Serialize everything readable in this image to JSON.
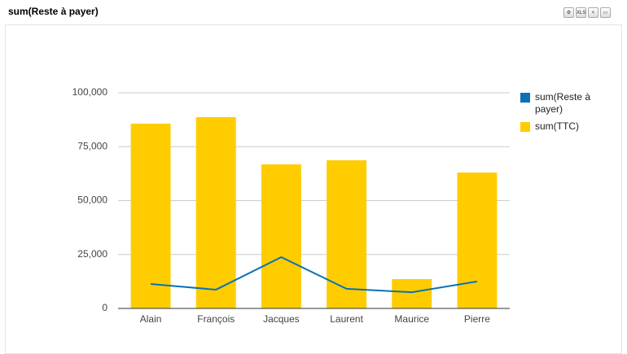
{
  "header": {
    "toolbar_label": "XLS"
  },
  "chart_data": {
    "type": "combo",
    "title": "sum(Reste à payer)",
    "categories": [
      "Alain",
      "François",
      "Jacques",
      "Laurent",
      "Maurice",
      "Pierre"
    ],
    "series": [
      {
        "name": "sum(Reste à payer)",
        "type": "line",
        "color": "#0b72b5",
        "values": [
          11300,
          8700,
          23800,
          9100,
          7500,
          12500
        ]
      },
      {
        "name": "sum(TTC)",
        "type": "bar",
        "color": "#ffcc00",
        "values": [
          85700,
          88700,
          66800,
          68700,
          13600,
          63000
        ]
      }
    ],
    "ylim": [
      0,
      100000
    ],
    "yticks": [
      0,
      {
        "value": 25000,
        "label": "25,000"
      },
      {
        "value": 50000,
        "label": "50,000"
      },
      {
        "value": 75000,
        "label": "75,000"
      },
      {
        "value": 100000,
        "label": "100,000"
      }
    ],
    "grid": true
  }
}
